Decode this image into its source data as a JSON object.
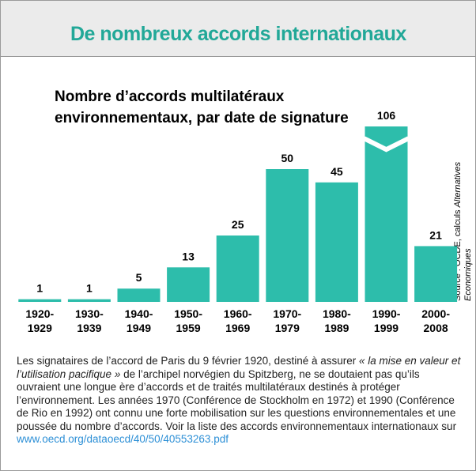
{
  "header": {
    "title": "De nombreux accords internationaux"
  },
  "chart_data": {
    "type": "bar",
    "title": [
      "Nombre d’accords multilatéraux",
      "environnementaux, par date de signature"
    ],
    "categories": [
      "1920-1929",
      "1930-1939",
      "1940-1949",
      "1950-1959",
      "1960-1969",
      "1970-1979",
      "1980-1989",
      "1990-1999",
      "2000-2008"
    ],
    "values": [
      1,
      1,
      5,
      13,
      25,
      50,
      45,
      106,
      21
    ],
    "color": "#2dbdab",
    "axis_break": 55,
    "source": [
      "Source : OCDE, calculs ",
      "Alternatives",
      "Economiques"
    ]
  },
  "caption": {
    "text1": "Les signataires de l’accord de Paris du 9 février 1920, destiné à assurer ",
    "quote": "« la mise en valeur et l’utilisation pacifique »",
    "text2": " de l’archipel norvégien du Spitzberg, ne se doutaient pas qu’ils ouvraient une longue ère d’accords et de traités multilatéraux destinés à protéger l’environnement. Les années 1970 (Conférence de Stockholm en 1972) et 1990 (Conférence de Rio en 1992) ont connu une forte mobilisation sur les questions environnementales et une poussée du nombre d’accords. Voir la liste des accords environnementaux internationaux sur ",
    "link": "www.oecd.org/dataoecd/40/50/40553263.pdf"
  }
}
